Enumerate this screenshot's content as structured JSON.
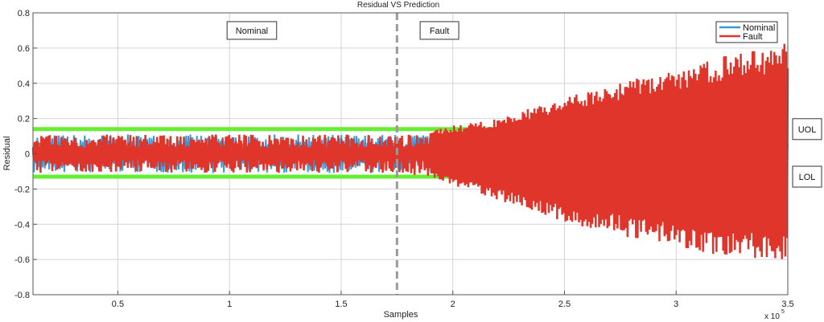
{
  "chart_data": {
    "type": "line",
    "title": "Residual VS Prediction",
    "xlabel": "Samples",
    "ylabel": "Residual",
    "x_multiplier": "x 10",
    "x_exponent": "5",
    "xlim": [
      0.12,
      3.5
    ],
    "ylim": [
      -0.8,
      0.8
    ],
    "xticks": [
      0.5,
      1,
      1.5,
      2,
      2.5,
      3,
      3.5
    ],
    "xtick_labels": [
      "0.5",
      "1",
      "1.5",
      "2",
      "2.5",
      "3",
      "3.5"
    ],
    "yticks": [
      -0.8,
      -0.6,
      -0.4,
      -0.2,
      0,
      0.2,
      0.4,
      0.6,
      0.8
    ],
    "ytick_labels": [
      "-0.8",
      "-0.6",
      "-0.4",
      "-0.2",
      "0",
      "0.2",
      "0.4",
      "0.6",
      "0.8"
    ],
    "grid": true,
    "legend_position": "top-right",
    "series": [
      {
        "name": "Nominal",
        "color": "#3a9ad9",
        "description_amplitude": [
          {
            "x": 0.12,
            "y_min": -0.11,
            "y_max": 0.11
          },
          {
            "x": 1.75,
            "y_min": -0.11,
            "y_max": 0.11
          },
          {
            "x": 3.5,
            "y_min": -0.11,
            "y_max": 0.11
          }
        ]
      },
      {
        "name": "Fault",
        "color": "#e0352b",
        "envelope": [
          {
            "x": 0.12,
            "y_min": -0.11,
            "y_max": 0.11
          },
          {
            "x": 1.75,
            "y_min": -0.11,
            "y_max": 0.11
          },
          {
            "x": 1.9,
            "y_min": -0.13,
            "y_max": 0.13
          },
          {
            "x": 2.0,
            "y_min": -0.18,
            "y_max": 0.16
          },
          {
            "x": 2.2,
            "y_min": -0.26,
            "y_max": 0.2
          },
          {
            "x": 2.4,
            "y_min": -0.35,
            "y_max": 0.28
          },
          {
            "x": 2.6,
            "y_min": -0.42,
            "y_max": 0.36
          },
          {
            "x": 2.8,
            "y_min": -0.48,
            "y_max": 0.42
          },
          {
            "x": 3.0,
            "y_min": -0.53,
            "y_max": 0.48
          },
          {
            "x": 3.2,
            "y_min": -0.58,
            "y_max": 0.55
          },
          {
            "x": 3.4,
            "y_min": -0.61,
            "y_max": 0.6
          },
          {
            "x": 3.5,
            "y_min": -0.62,
            "y_max": 0.63
          }
        ]
      }
    ],
    "threshold_lines": [
      {
        "label": "UOL",
        "y": 0.14,
        "color": "#66ee33"
      },
      {
        "label": "LOL",
        "y": -0.13,
        "color": "#66ee33"
      }
    ],
    "divider": {
      "x": 1.75,
      "color": "#9a9a9a"
    },
    "annotations": [
      {
        "text": "Nominal",
        "x": 1.1,
        "y": 0.7
      },
      {
        "text": "Fault",
        "x": 1.94,
        "y": 0.7
      }
    ]
  }
}
